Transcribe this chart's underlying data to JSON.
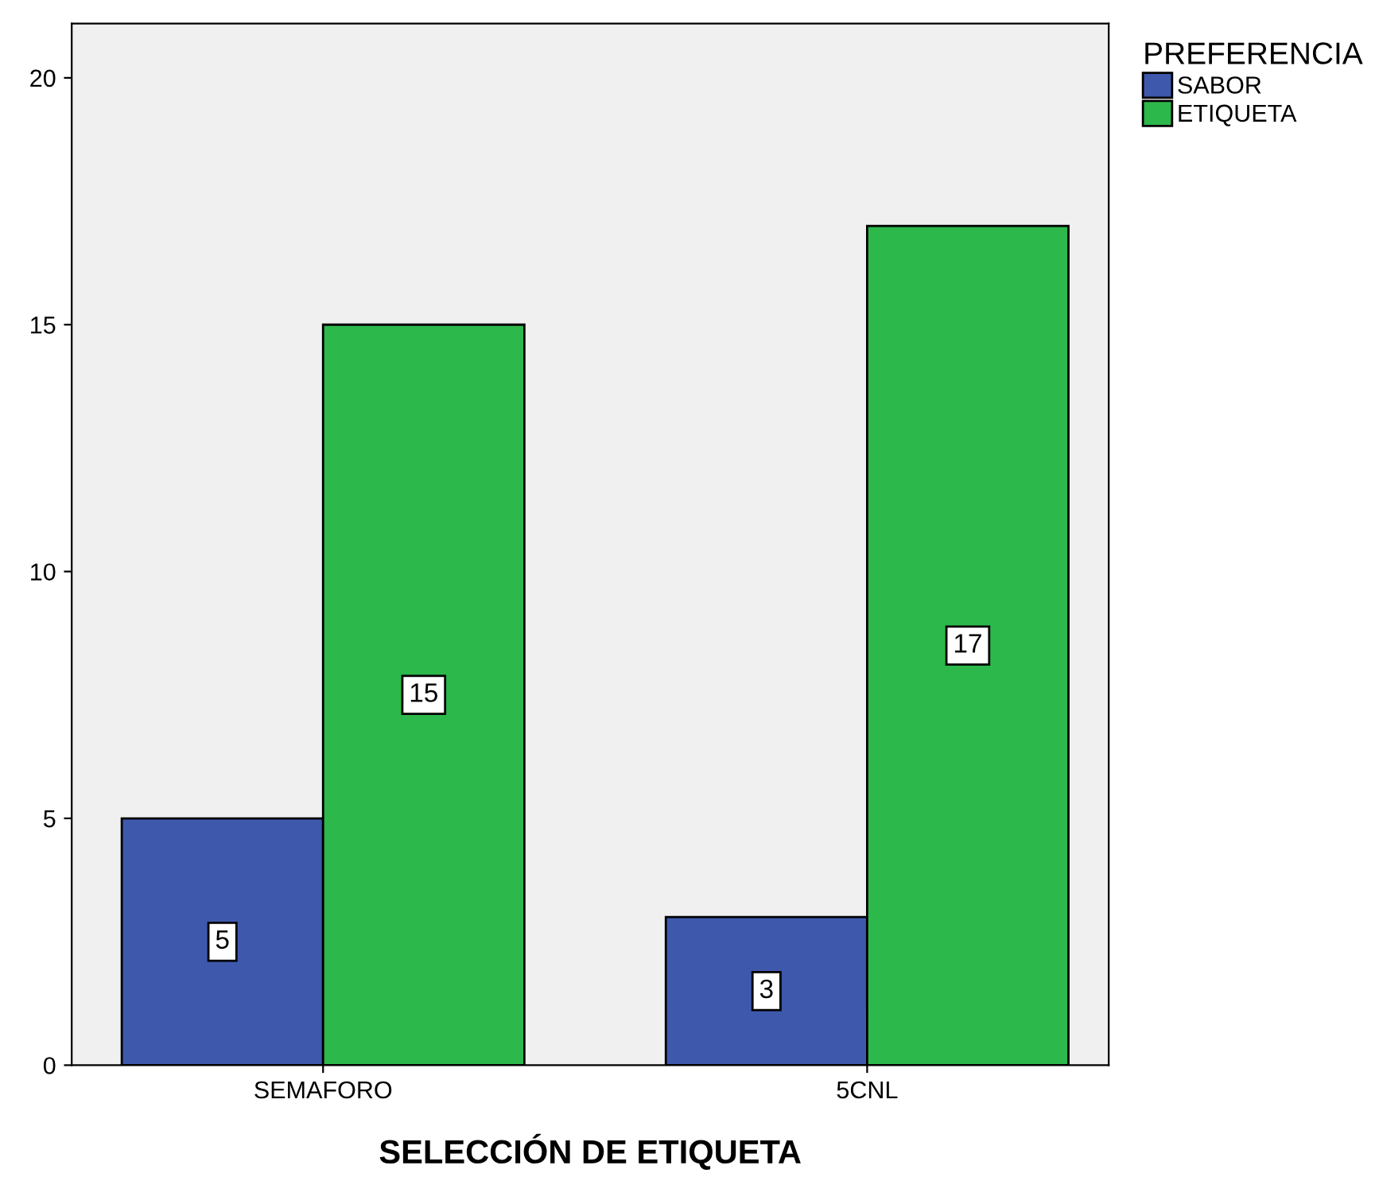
{
  "chart_data": {
    "type": "bar",
    "xlabel": "SELECCIÓN DE ETIQUETA",
    "legend_title": "PREFERENCIA",
    "categories": [
      "SEMAFORO",
      "5CNL"
    ],
    "series": [
      {
        "name": "SABOR",
        "color": "#3e58ac",
        "values": [
          5,
          3
        ]
      },
      {
        "name": "ETIQUETA",
        "color": "#2db84b",
        "values": [
          15,
          17
        ]
      }
    ],
    "ylim": [
      0,
      21.1
    ],
    "yticks": [
      0,
      5,
      10,
      15,
      20
    ],
    "data_labels": true,
    "grid": false,
    "legend": "top right"
  }
}
